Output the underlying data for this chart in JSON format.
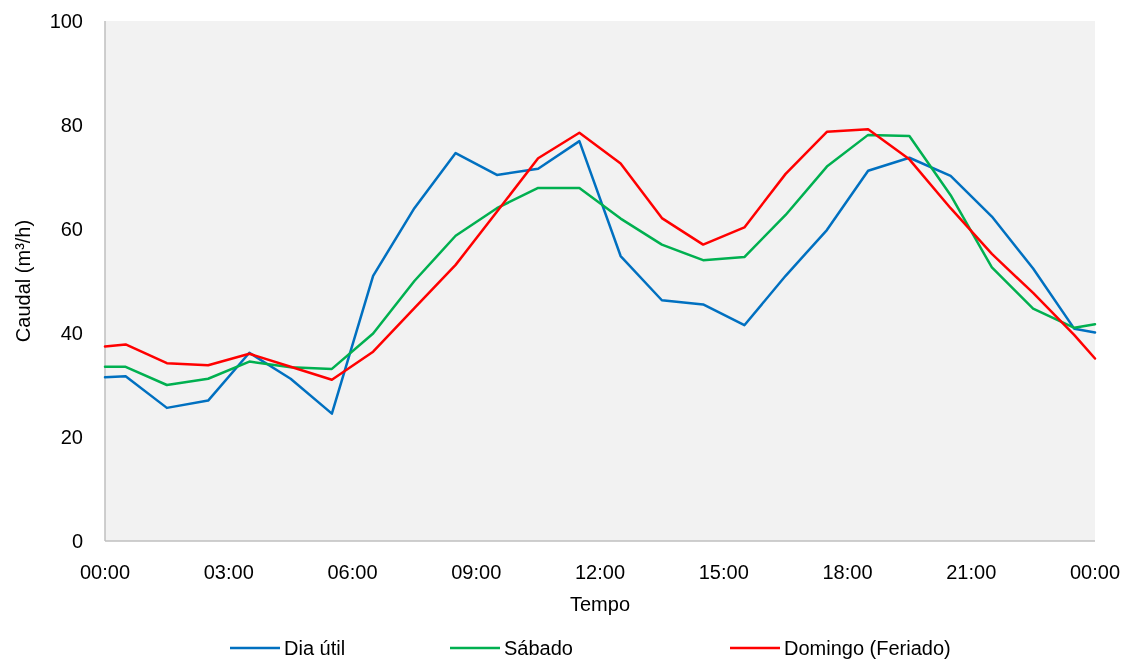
{
  "chart_data": {
    "type": "line",
    "xlabel": "Tempo",
    "ylabel": "Caudal (m³/h)",
    "x": [
      0,
      0.5,
      1.5,
      2.5,
      3.5,
      4.5,
      5.5,
      6.5,
      7.5,
      8.5,
      9.5,
      10.5,
      11.5,
      12.5,
      13.5,
      14.5,
      15.5,
      16.5,
      17.5,
      18.5,
      19.5,
      20.5,
      21.5,
      22.5,
      23.5,
      24
    ],
    "series": [
      {
        "name": "Dia útil",
        "color": "#0070c0",
        "values": [
          31.5,
          31.7,
          25.6,
          27.0,
          36.2,
          31.2,
          24.5,
          51.0,
          64.0,
          74.6,
          70.4,
          71.6,
          76.9,
          54.8,
          46.3,
          45.5,
          41.5,
          51.0,
          59.8,
          71.2,
          73.7,
          70.2,
          62.4,
          52.4,
          40.8,
          40.1
        ]
      },
      {
        "name": "Sábado",
        "color": "#00b050",
        "values": [
          33.5,
          33.5,
          30.0,
          31.2,
          34.5,
          33.4,
          33.1,
          39.9,
          50.0,
          58.7,
          64.0,
          67.9,
          67.9,
          62.0,
          57.0,
          54.0,
          54.6,
          62.7,
          72.0,
          78.1,
          77.9,
          66.5,
          52.6,
          44.7,
          41.0,
          41.7
        ]
      },
      {
        "name": "Domingo (Feriado)",
        "color": "#ff0000",
        "values": [
          37.4,
          37.8,
          34.2,
          33.8,
          36.0,
          33.5,
          31.0,
          36.4,
          44.8,
          53.1,
          63.3,
          73.6,
          78.5,
          72.6,
          62.1,
          57.0,
          60.3,
          70.6,
          78.7,
          79.2,
          73.4,
          64.0,
          55.2,
          47.7,
          39.6,
          35.1
        ]
      }
    ],
    "xlim": [
      0,
      24
    ],
    "xticks": [
      {
        "value": 0,
        "label": "00:00"
      },
      {
        "value": 3,
        "label": "03:00"
      },
      {
        "value": 6,
        "label": "06:00"
      },
      {
        "value": 9,
        "label": "09:00"
      },
      {
        "value": 12,
        "label": "12:00"
      },
      {
        "value": 15,
        "label": "15:00"
      },
      {
        "value": 18,
        "label": "18:00"
      },
      {
        "value": 21,
        "label": "21:00"
      },
      {
        "value": 24,
        "label": "00:00"
      }
    ],
    "ylim": [
      0,
      100
    ],
    "yticks": [
      0,
      20,
      40,
      60,
      80,
      100
    ],
    "legend": "bottom",
    "grid": false,
    "marker": "none",
    "line_style": "solid"
  }
}
